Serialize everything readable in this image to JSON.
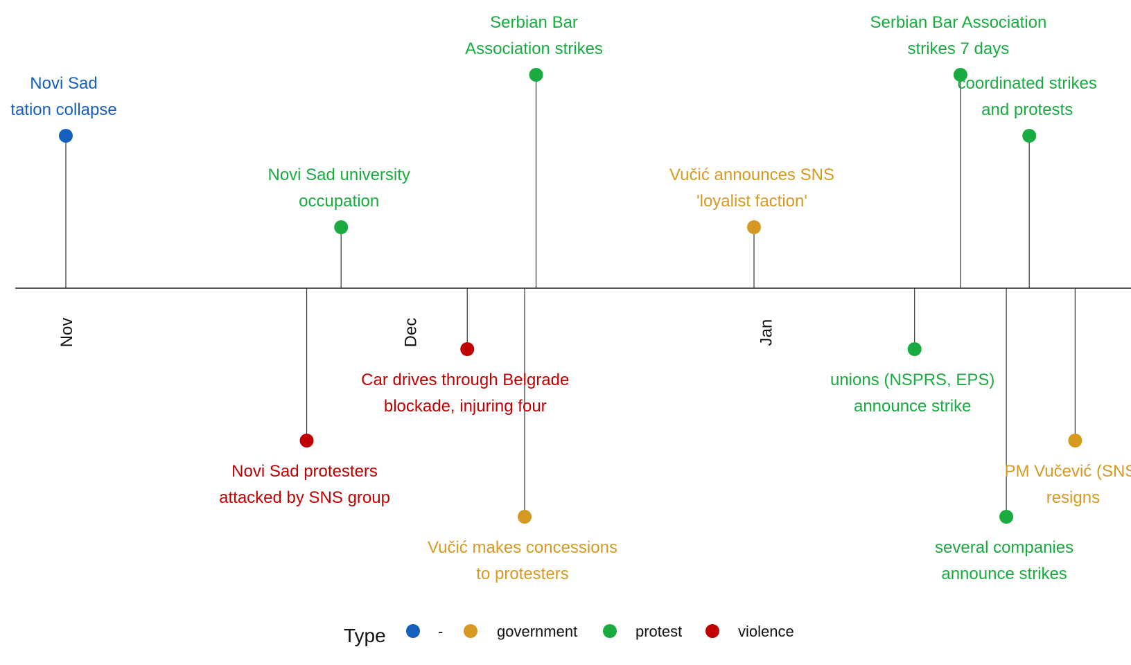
{
  "chart_data": {
    "type": "timeline",
    "title": "",
    "months": [
      {
        "label": "Nov",
        "date": "2024-11-01"
      },
      {
        "label": "Dec",
        "date": "2024-12-01"
      },
      {
        "label": "Jan",
        "date": "2025-01-01"
      }
    ],
    "x_range": [
      "2024-10-28",
      "2025-02-08"
    ],
    "events": [
      {
        "date": "2024-11-01",
        "lines": [
          "Novi Sad",
          "tation collapse"
        ],
        "type": "-",
        "height": 0.5
      },
      {
        "date": "2024-11-22",
        "lines": [
          "Novi Sad protesters",
          "attacked by SNS group"
        ],
        "type": "violence",
        "height": -0.5
      },
      {
        "date": "2024-11-25",
        "lines": [
          "Novi Sad university",
          "occupation"
        ],
        "type": "protest",
        "height": 0.2
      },
      {
        "date": "2024-12-06",
        "lines": [
          "Car drives through Belgrade",
          "blockade, injuring four"
        ],
        "type": "violence",
        "height": -0.2
      },
      {
        "date": "2024-12-11",
        "lines": [
          "Vučić makes concessions",
          "to protesters"
        ],
        "type": "government",
        "height": -0.75
      },
      {
        "date": "2024-12-12",
        "lines": [
          "Serbian Bar",
          "Association strikes"
        ],
        "type": "protest",
        "height": 0.7
      },
      {
        "date": "2024-12-31",
        "lines": [
          "Vučić announces SNS",
          "'loyalist faction'"
        ],
        "type": "government",
        "height": 0.2
      },
      {
        "date": "2025-01-14",
        "lines": [
          "unions (NSPRS, EPS)",
          "announce strike"
        ],
        "type": "protest",
        "height": -0.2
      },
      {
        "date": "2025-01-18",
        "lines": [
          "Serbian Bar Association",
          "strikes 7 days"
        ],
        "type": "protest",
        "height": 0.7
      },
      {
        "date": "2025-01-22",
        "lines": [
          "several companies",
          "announce strikes"
        ],
        "type": "protest",
        "height": -0.75
      },
      {
        "date": "2025-01-24",
        "lines": [
          "coordinated strikes",
          "and protests"
        ],
        "type": "protest",
        "height": 0.5
      },
      {
        "date": "2025-01-28",
        "lines": [
          "PM Vučević (SNS)",
          "resigns"
        ],
        "type": "government",
        "height": -0.5
      }
    ],
    "legend": {
      "title": "Type",
      "placement": "bottom",
      "items": [
        {
          "key": "-",
          "label": "-",
          "color": "#1560bd"
        },
        {
          "key": "government",
          "label": "government",
          "color": "#d69a22"
        },
        {
          "key": "protest",
          "label": "protest",
          "color": "#1aab40"
        },
        {
          "key": "violence",
          "label": "violence",
          "color": "#c00000"
        }
      ]
    }
  }
}
